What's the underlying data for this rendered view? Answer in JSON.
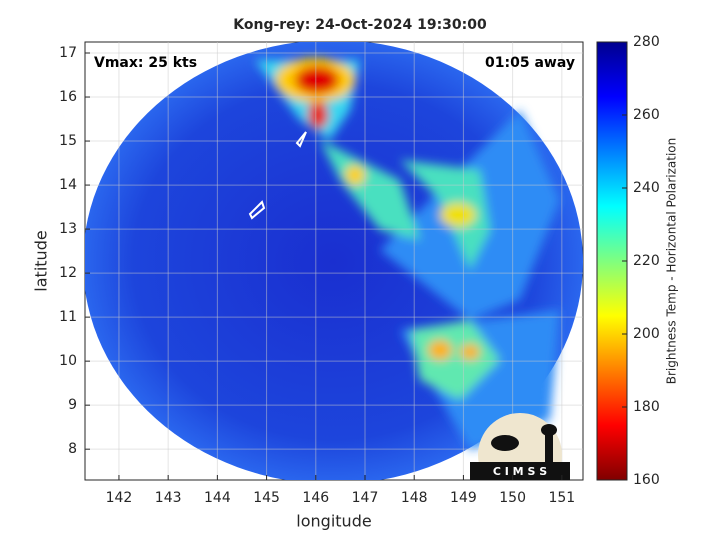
{
  "title": "Kong-rey: 24-Oct-2024 19:30:00",
  "annotations": {
    "intensity": "Vmax: 25 kts",
    "time_offset": "01:05 away"
  },
  "xaxis": {
    "label": "longitude",
    "lim": [
      141.31,
      151.43
    ],
    "ticks": [
      142,
      143,
      144,
      145,
      146,
      147,
      148,
      149,
      150,
      151
    ]
  },
  "yaxis": {
    "label": "latitude",
    "lim": [
      7.3,
      17.25
    ],
    "ticks": [
      8,
      9,
      10,
      11,
      12,
      13,
      14,
      15,
      16,
      17
    ]
  },
  "colorbar": {
    "label": "Brightness Temp - Horizontal Polarization",
    "lim": [
      160,
      280
    ],
    "ticks": [
      160,
      180,
      200,
      220,
      240,
      260,
      280
    ]
  },
  "logo": {
    "text": "C I M S S"
  }
}
